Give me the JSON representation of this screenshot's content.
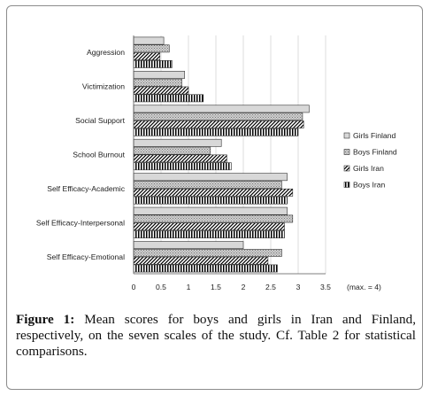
{
  "chart_data": {
    "type": "bar",
    "orientation": "horizontal",
    "categories": [
      "Aggression",
      "Victimization",
      "Social Support",
      "School Burnout",
      "Self Efficacy-Academic",
      "Self Efficacy-Interpersonal",
      "Self Efficacy-Emotional"
    ],
    "series": [
      {
        "name": "Girls Finland",
        "values": [
          0.55,
          0.93,
          3.2,
          1.6,
          2.8,
          2.8,
          2.0
        ],
        "pattern": "light-gray"
      },
      {
        "name": "Boys Finland",
        "values": [
          0.65,
          0.88,
          3.08,
          1.4,
          2.7,
          2.9,
          2.7
        ],
        "pattern": "dotted-gray"
      },
      {
        "name": "Girls Iran",
        "values": [
          0.48,
          1.0,
          3.1,
          1.7,
          2.9,
          2.75,
          2.45
        ],
        "pattern": "diagonal-hatch"
      },
      {
        "name": "Boys Iran",
        "values": [
          0.7,
          1.27,
          3.0,
          1.78,
          2.8,
          2.75,
          2.62
        ],
        "pattern": "vertical-stripes"
      }
    ],
    "xlim": [
      0,
      3.5
    ],
    "xticks": [
      "0",
      "0.5",
      "1",
      "1.5",
      "2",
      "2.5",
      "3",
      "3.5"
    ],
    "note": "(max. = 4)",
    "legend_position": "right"
  },
  "caption": {
    "label": "Figure 1:",
    "text": " Mean scores for boys and girls in Iran and Finland, respectively, on the seven scales of the study. Cf. Table 2 for statistical comparisons."
  }
}
